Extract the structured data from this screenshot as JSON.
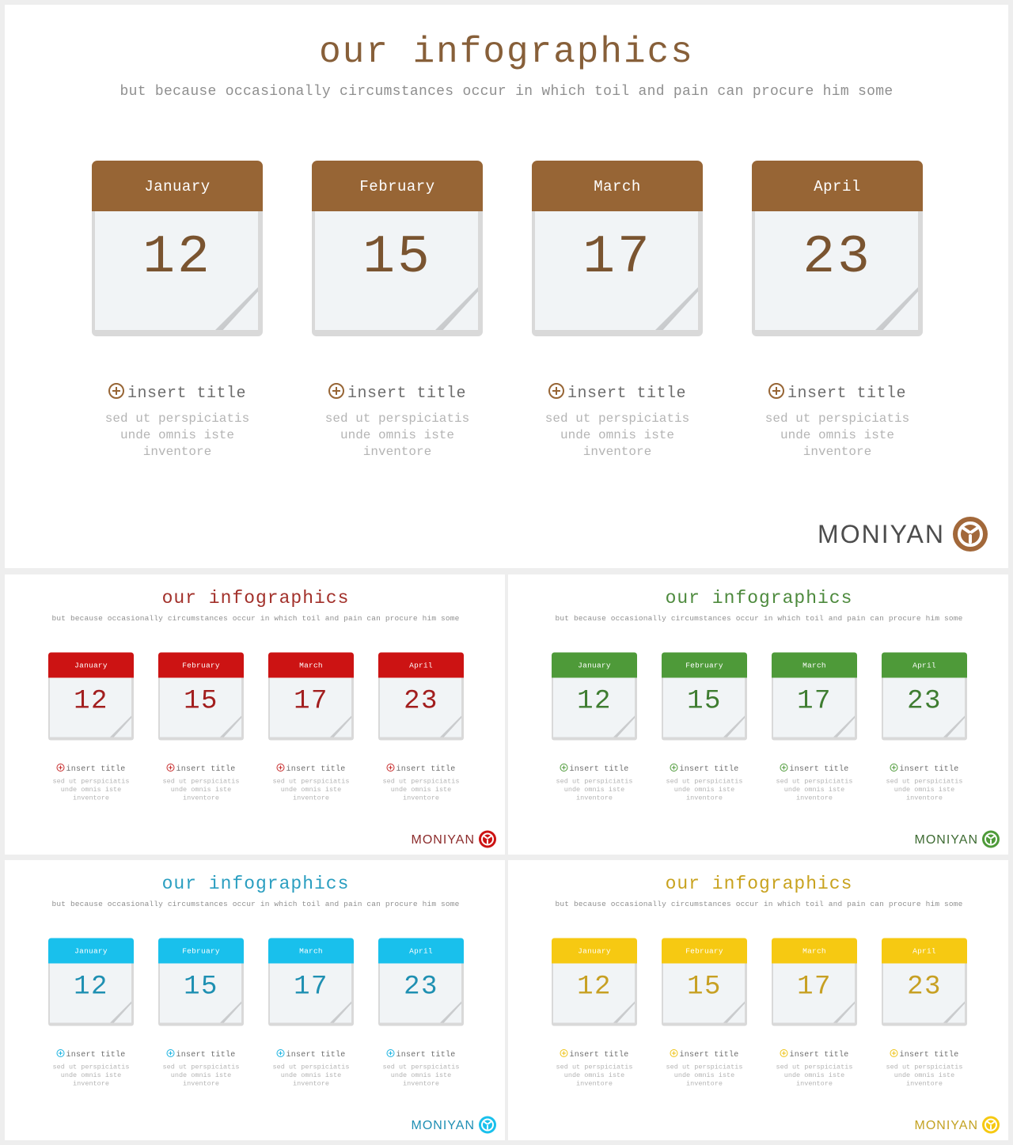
{
  "common": {
    "title": "our infographics",
    "subtitle": "but because occasionally circumstances occur in which toil and pain can procure him some",
    "brand": "MONIYAN",
    "cards": [
      {
        "month": "January",
        "day": "12",
        "title": "insert title",
        "desc_lines": [
          "sed ut perspiciatis",
          "unde omnis iste",
          "inventore"
        ]
      },
      {
        "month": "February",
        "day": "15",
        "title": "insert title",
        "desc_lines": [
          "sed ut perspiciatis",
          "unde omnis iste",
          "inventore"
        ]
      },
      {
        "month": "March",
        "day": "17",
        "title": "insert title",
        "desc_lines": [
          "sed ut perspiciatis",
          "unde omnis iste",
          "inventore"
        ]
      },
      {
        "month": "April",
        "day": "23",
        "title": "insert title",
        "desc_lines": [
          "sed ut perspiciatis",
          "unde omnis iste",
          "inventore"
        ]
      }
    ]
  },
  "themes": [
    {
      "id": "main",
      "name": "brown",
      "accent": "#976535"
    },
    {
      "id": "red",
      "name": "red",
      "accent": "#cc1313"
    },
    {
      "id": "green",
      "name": "green",
      "accent": "#4e9a39"
    },
    {
      "id": "blue",
      "name": "blue",
      "accent": "#19c0ec"
    },
    {
      "id": "yellow",
      "name": "yellow",
      "accent": "#f6c912"
    }
  ],
  "icons": {
    "bullet": "plus-circle-icon",
    "logo": "moniyan-logo-icon",
    "page_curl": "page-curl-icon"
  }
}
